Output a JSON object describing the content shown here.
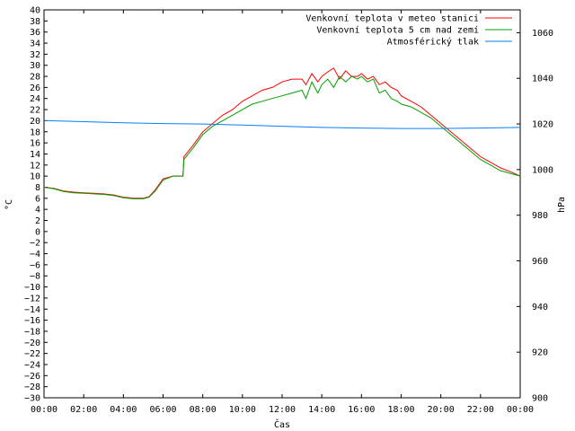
{
  "chart_data": {
    "type": "line",
    "xlabel": "Čas",
    "ylabel_left": "°C",
    "ylabel_right": "hPa",
    "ylim_left": [
      -30,
      40
    ],
    "ylim_right": [
      900,
      1070
    ],
    "y_ticks_left": [
      -30,
      -28,
      -26,
      -24,
      -22,
      -20,
      -18,
      -16,
      -14,
      -12,
      -10,
      -8,
      -6,
      -4,
      -2,
      0,
      2,
      4,
      6,
      8,
      10,
      12,
      14,
      16,
      18,
      20,
      22,
      24,
      26,
      28,
      30,
      32,
      34,
      36,
      38,
      40
    ],
    "y_ticks_right": [
      900,
      920,
      940,
      960,
      980,
      1000,
      1020,
      1040,
      1060
    ],
    "x_range_hours": [
      0,
      24
    ],
    "x_ticks": [
      {
        "h": 0,
        "label": "00:00"
      },
      {
        "h": 2,
        "label": "02:00"
      },
      {
        "h": 4,
        "label": "04:00"
      },
      {
        "h": 6,
        "label": "06:00"
      },
      {
        "h": 8,
        "label": "08:00"
      },
      {
        "h": 10,
        "label": "10:00"
      },
      {
        "h": 12,
        "label": "12:00"
      },
      {
        "h": 14,
        "label": "14:00"
      },
      {
        "h": 16,
        "label": "16:00"
      },
      {
        "h": 18,
        "label": "18:00"
      },
      {
        "h": 20,
        "label": "20:00"
      },
      {
        "h": 22,
        "label": "22:00"
      },
      {
        "h": 24,
        "label": "00:00"
      }
    ],
    "grid": false,
    "legend_position": "top-right",
    "series": [
      {
        "name": "Venkovní teplota v meteo stanici",
        "color": "#ff0000",
        "axis": "left",
        "x": [
          0,
          0.5,
          1,
          1.5,
          2,
          2.5,
          3,
          3.5,
          4,
          4.5,
          5,
          5.3,
          5.6,
          6,
          6.5,
          7,
          7.05,
          7.5,
          8,
          8.5,
          9,
          9.5,
          10,
          10.5,
          11,
          11.5,
          12,
          12.5,
          13,
          13.2,
          13.5,
          13.8,
          14,
          14.3,
          14.6,
          14.9,
          15.2,
          15.5,
          15.8,
          16,
          16.3,
          16.6,
          16.9,
          17.2,
          17.5,
          17.8,
          18,
          18.5,
          19,
          19.5,
          20,
          20.5,
          21,
          21.5,
          22,
          22.5,
          23,
          23.5,
          24
        ],
        "y": [
          8,
          7.8,
          7.3,
          7.1,
          7.0,
          6.9,
          6.8,
          6.6,
          6.2,
          6.0,
          6.0,
          6.3,
          7.5,
          9.5,
          10.0,
          10.0,
          13.5,
          15.5,
          18.0,
          19.5,
          21.0,
          22.0,
          23.5,
          24.5,
          25.5,
          26.0,
          27.0,
          27.5,
          27.5,
          26.5,
          28.5,
          27.0,
          28.0,
          28.8,
          29.5,
          27.5,
          29.0,
          28.0,
          28.0,
          28.5,
          27.5,
          28.0,
          26.5,
          27.0,
          26.0,
          25.5,
          24.5,
          23.5,
          22.5,
          21.0,
          19.5,
          18.0,
          16.5,
          15.0,
          13.5,
          12.5,
          11.5,
          10.8,
          10.0
        ]
      },
      {
        "name": "Venkovní teplota 5 cm nad zemí",
        "color": "#00a000",
        "axis": "left",
        "x": [
          0,
          0.5,
          1,
          1.5,
          2,
          2.5,
          3,
          3.5,
          4,
          4.5,
          5,
          5.3,
          5.6,
          6,
          6.5,
          7,
          7.05,
          7.5,
          8,
          8.5,
          9,
          9.5,
          10,
          10.5,
          11,
          11.5,
          12,
          12.5,
          13,
          13.2,
          13.5,
          13.8,
          14,
          14.3,
          14.6,
          14.9,
          15.2,
          15.5,
          15.8,
          16,
          16.3,
          16.6,
          16.9,
          17.2,
          17.5,
          17.8,
          18,
          18.5,
          19,
          19.5,
          20,
          20.5,
          21,
          21.5,
          22,
          22.5,
          23,
          23.5,
          24
        ],
        "y": [
          8,
          7.7,
          7.2,
          7.0,
          6.9,
          6.8,
          6.7,
          6.5,
          6.1,
          5.9,
          5.9,
          6.2,
          7.3,
          9.3,
          10.0,
          10.0,
          13.0,
          15.0,
          17.5,
          19.0,
          20.0,
          21.0,
          22.0,
          23.0,
          23.5,
          24.0,
          24.5,
          25.0,
          25.5,
          24.0,
          27.0,
          25.0,
          26.5,
          27.5,
          26.0,
          28.0,
          27.0,
          28.0,
          27.5,
          28.0,
          27.0,
          27.5,
          25.0,
          25.5,
          24.0,
          23.5,
          23.0,
          22.5,
          21.5,
          20.5,
          19.0,
          17.5,
          16.0,
          14.5,
          13.0,
          12.0,
          11.0,
          10.5,
          10.0
        ]
      },
      {
        "name": "Atmosférický tlak",
        "color": "#0080ff",
        "axis": "right",
        "x": [
          0,
          2,
          4,
          6,
          8,
          10,
          12,
          14,
          16,
          18,
          20,
          22,
          24
        ],
        "y": [
          1021.5,
          1021.0,
          1020.5,
          1020.2,
          1020.0,
          1019.5,
          1019.0,
          1018.5,
          1018.2,
          1018.0,
          1018.0,
          1018.2,
          1018.5
        ]
      }
    ]
  }
}
